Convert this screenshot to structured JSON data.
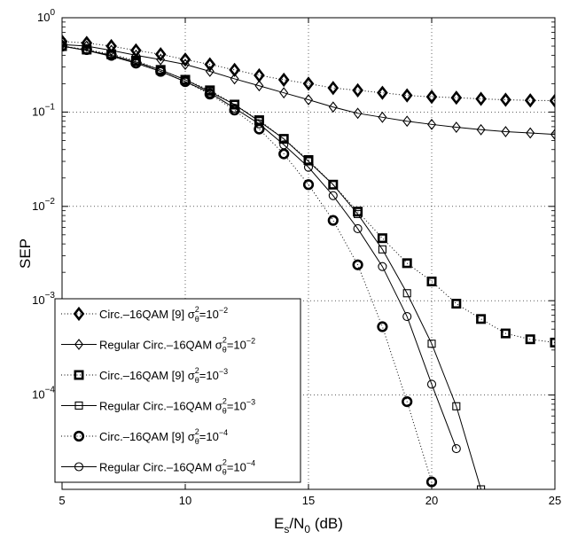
{
  "chart_data": {
    "type": "line",
    "title": "",
    "xlabel": "E_s/N_0 (dB)",
    "ylabel": "SEP",
    "xlim": [
      5,
      25
    ],
    "ylim": [
      1e-05,
      1
    ],
    "yscale": "log",
    "grid": true,
    "x_ticks": [
      "5",
      "10",
      "15",
      "20",
      "25"
    ],
    "y_ticks": [
      "10^0",
      "10^-1",
      "10^-2",
      "10^-3",
      "10^-4"
    ],
    "legend_position": "bottom-left",
    "series": [
      {
        "name": "Circ.–16QAM [9] σθ²=10⁻²",
        "legend_text": "Circ.–16QAM [9] σ",
        "exponent": "−2",
        "marker": "diamond",
        "line": "dotted",
        "bold": true,
        "x": [
          5,
          6,
          7,
          8,
          9,
          10,
          11,
          12,
          13,
          14,
          15,
          16,
          17,
          18,
          19,
          20,
          21,
          22,
          23,
          24,
          25
        ],
        "y": [
          0.56,
          0.54,
          0.5,
          0.45,
          0.41,
          0.36,
          0.32,
          0.28,
          0.245,
          0.22,
          0.2,
          0.18,
          0.17,
          0.16,
          0.15,
          0.145,
          0.142,
          0.138,
          0.135,
          0.133,
          0.132
        ]
      },
      {
        "name": "Regular Circ.–16QAM σθ²=10⁻²",
        "legend_text": "Regular Circ.–16QAM σ",
        "exponent": "−2",
        "marker": "diamond",
        "line": "solid",
        "bold": false,
        "x": [
          5,
          6,
          7,
          8,
          9,
          10,
          11,
          12,
          13,
          14,
          15,
          16,
          17,
          18,
          19,
          20,
          21,
          22,
          23,
          24,
          25
        ],
        "y": [
          0.52,
          0.5,
          0.45,
          0.4,
          0.36,
          0.32,
          0.27,
          0.225,
          0.19,
          0.16,
          0.135,
          0.113,
          0.097,
          0.088,
          0.08,
          0.074,
          0.069,
          0.065,
          0.062,
          0.06,
          0.058
        ]
      },
      {
        "name": "Circ.–16QAM [9] σθ²=10⁻³",
        "legend_text": "Circ.–16QAM [9] σ",
        "exponent": "−3",
        "marker": "square",
        "line": "dotted",
        "bold": true,
        "x": [
          5,
          6,
          7,
          8,
          9,
          10,
          11,
          12,
          13,
          14,
          15,
          16,
          17,
          18,
          19,
          20,
          21,
          22,
          23,
          24,
          25
        ],
        "y": [
          0.5,
          0.46,
          0.41,
          0.35,
          0.28,
          0.22,
          0.17,
          0.12,
          0.082,
          0.052,
          0.031,
          0.017,
          0.0088,
          0.0046,
          0.0025,
          0.0016,
          0.00093,
          0.00064,
          0.00045,
          0.00039,
          0.00036
        ]
      },
      {
        "name": "Regular Circ.–16QAM σθ²=10⁻³",
        "legend_text": "Regular Circ.–16QAM σ",
        "exponent": "−3",
        "marker": "square",
        "line": "solid",
        "bold": false,
        "x": [
          5,
          6,
          7,
          8,
          9,
          10,
          11,
          12,
          13,
          14,
          15,
          16,
          17,
          18,
          19,
          20,
          21,
          22
        ],
        "y": [
          0.5,
          0.45,
          0.4,
          0.34,
          0.28,
          0.22,
          0.165,
          0.12,
          0.08,
          0.052,
          0.03,
          0.017,
          0.0083,
          0.0035,
          0.0012,
          0.00035,
          7.6e-05,
          1e-05
        ]
      },
      {
        "name": "Circ.–16QAM [9] σθ²=10⁻⁴",
        "legend_text": "Circ.–16QAM [9] σ",
        "exponent": "−4",
        "marker": "circle",
        "line": "dotted",
        "bold": true,
        "x": [
          5,
          6,
          7,
          8,
          9,
          10,
          11,
          12,
          13,
          14,
          15,
          16,
          17,
          18,
          19,
          20
        ],
        "y": [
          0.5,
          0.46,
          0.4,
          0.33,
          0.27,
          0.21,
          0.155,
          0.105,
          0.066,
          0.036,
          0.017,
          0.0071,
          0.0024,
          0.00053,
          8.5e-05,
          1.2e-05
        ]
      },
      {
        "name": "Regular Circ.–16QAM σθ²=10⁻⁴",
        "legend_text": "Regular Circ.–16QAM σ",
        "exponent": "−4",
        "marker": "circle",
        "line": "solid",
        "bold": false,
        "x": [
          5,
          6,
          7,
          8,
          9,
          10,
          11,
          12,
          13,
          14,
          15,
          16,
          17,
          18,
          19,
          20,
          21
        ],
        "y": [
          0.5,
          0.45,
          0.39,
          0.33,
          0.27,
          0.21,
          0.16,
          0.11,
          0.075,
          0.045,
          0.026,
          0.013,
          0.0058,
          0.0023,
          0.00068,
          0.00013,
          2.7e-05
        ]
      }
    ]
  }
}
